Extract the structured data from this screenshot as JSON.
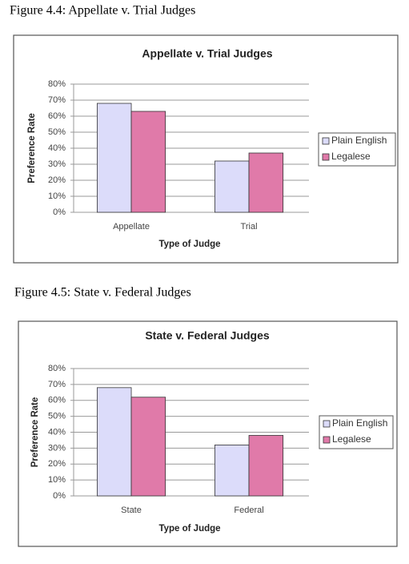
{
  "chart_data": [
    {
      "type": "bar",
      "caption": "Figure 4.4: Appellate v. Trial Judges",
      "title": "Appellate v. Trial Judges",
      "x_label": "Type of Judge",
      "y_label": "Preference Rate",
      "categories": [
        "Appellate",
        "Trial"
      ],
      "series": [
        {
          "name": "Plain English",
          "color": "#dcdcfa",
          "values": [
            68,
            32
          ]
        },
        {
          "name": "Legalese",
          "color": "#e07aa9",
          "values": [
            63,
            37
          ]
        }
      ],
      "ylim": [
        0,
        80
      ],
      "yticks": [
        {
          "value": 0,
          "label": "0%"
        },
        {
          "value": 10,
          "label": "10%"
        },
        {
          "value": 20,
          "label": "20%"
        },
        {
          "value": 30,
          "label": "30%"
        },
        {
          "value": 40,
          "label": "40%"
        },
        {
          "value": 50,
          "label": "50%"
        },
        {
          "value": 60,
          "label": "60%"
        },
        {
          "value": 70,
          "label": "70%"
        },
        {
          "value": 80,
          "label": "80%"
        }
      ],
      "grid": true,
      "legend": "right"
    },
    {
      "type": "bar",
      "caption": "Figure 4.5: State v. Federal Judges",
      "title": "State v. Federal Judges",
      "x_label": "Type of Judge",
      "y_label": "Preference Rate",
      "categories": [
        "State",
        "Federal"
      ],
      "series": [
        {
          "name": "Plain English",
          "color": "#dcdcfa",
          "values": [
            68,
            32
          ]
        },
        {
          "name": "Legalese",
          "color": "#e07aa9",
          "values": [
            62,
            38
          ]
        }
      ],
      "ylim": [
        0,
        80
      ],
      "yticks": [
        {
          "value": 0,
          "label": "0%"
        },
        {
          "value": 10,
          "label": "10%"
        },
        {
          "value": 20,
          "label": "20%"
        },
        {
          "value": 30,
          "label": "30%"
        },
        {
          "value": 40,
          "label": "40%"
        },
        {
          "value": 50,
          "label": "50%"
        },
        {
          "value": 60,
          "label": "60%"
        },
        {
          "value": 70,
          "label": "70%"
        },
        {
          "value": 80,
          "label": "80%"
        }
      ],
      "grid": true,
      "legend": "right"
    }
  ]
}
